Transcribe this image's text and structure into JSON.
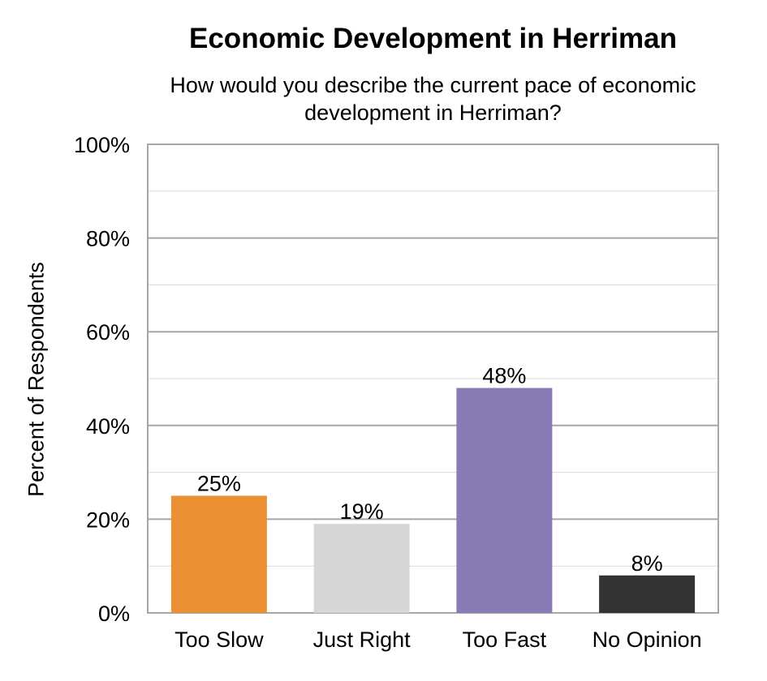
{
  "chart_data": {
    "type": "bar",
    "title": "Economic Development in Herriman",
    "subtitle": "How would you describe the current pace of economic development in Herriman?",
    "xlabel": "",
    "ylabel": "Percent of Respondents",
    "categories": [
      "Too Slow",
      "Just Right",
      "Too Fast",
      "No Opinion"
    ],
    "values": [
      25,
      19,
      48,
      8
    ],
    "data_labels": [
      "25%",
      "19%",
      "48%",
      "8%"
    ],
    "colors": [
      "#EC9133",
      "#D6D6D6",
      "#897BB5",
      "#333333"
    ],
    "ylim": [
      0,
      100
    ],
    "y_ticks": [
      0,
      20,
      40,
      60,
      80,
      100
    ],
    "y_tick_labels": [
      "0%",
      "20%",
      "40%",
      "60%",
      "80%",
      "100%"
    ],
    "grid": true,
    "legend": false
  }
}
